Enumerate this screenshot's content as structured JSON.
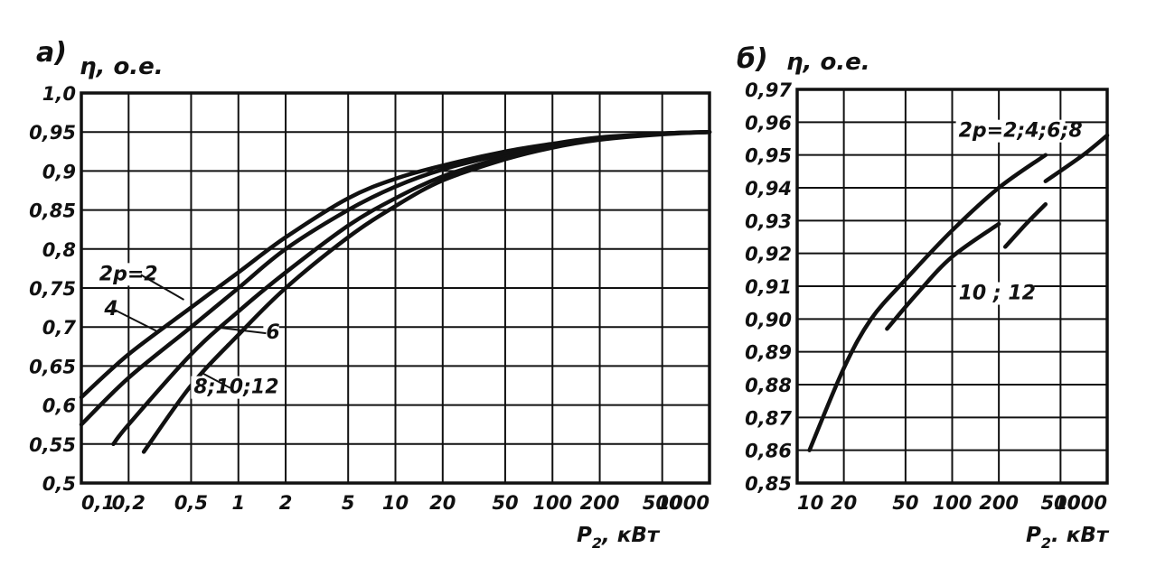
{
  "chart_data": [
    {
      "panel_label": "а)",
      "type": "line",
      "ylabel": "η, о.е.",
      "xlabel_main": "P",
      "xlabel_sub": "2",
      "xlabel_unit": ", кВт",
      "x_scale": "log",
      "xlim": [
        0.1,
        1000
      ],
      "ylim": [
        0.5,
        1.0
      ],
      "grid": true,
      "x_ticks": [
        {
          "v": 0.1,
          "t": "0,1"
        },
        {
          "v": 0.2,
          "t": "0,2"
        },
        {
          "v": 0.5,
          "t": "0,5"
        },
        {
          "v": 1,
          "t": "1"
        },
        {
          "v": 2,
          "t": "2"
        },
        {
          "v": 5,
          "t": "5"
        },
        {
          "v": 10,
          "t": "10"
        },
        {
          "v": 20,
          "t": "20"
        },
        {
          "v": 50,
          "t": "50"
        },
        {
          "v": 100,
          "t": "100"
        },
        {
          "v": 200,
          "t": "200"
        },
        {
          "v": 500,
          "t": "500"
        },
        {
          "v": 1000,
          "t": "1000"
        }
      ],
      "y_ticks": [
        {
          "v": 0.5,
          "t": "0,5"
        },
        {
          "v": 0.55,
          "t": "0,55"
        },
        {
          "v": 0.6,
          "t": "0,6"
        },
        {
          "v": 0.65,
          "t": "0,65"
        },
        {
          "v": 0.7,
          "t": "0,7"
        },
        {
          "v": 0.75,
          "t": "0,75"
        },
        {
          "v": 0.8,
          "t": "0,8"
        },
        {
          "v": 0.85,
          "t": "0,85"
        },
        {
          "v": 0.9,
          "t": "0,9"
        },
        {
          "v": 0.95,
          "t": "0,95"
        },
        {
          "v": 1.0,
          "t": "1,0"
        }
      ],
      "series": [
        {
          "name": "2p=2",
          "x": [
            0.1,
            0.2,
            0.5,
            1,
            2,
            5,
            10,
            20,
            50,
            100,
            200,
            500,
            1000
          ],
          "y": [
            0.61,
            0.665,
            0.725,
            0.77,
            0.815,
            0.865,
            0.89,
            0.907,
            0.925,
            0.935,
            0.943,
            0.948,
            0.95
          ]
        },
        {
          "name": "4",
          "x": [
            0.1,
            0.2,
            0.5,
            1,
            2,
            5,
            10,
            20,
            50,
            100,
            200,
            500,
            1000
          ],
          "y": [
            0.575,
            0.635,
            0.7,
            0.75,
            0.8,
            0.85,
            0.88,
            0.902,
            0.922,
            0.933,
            0.942,
            0.948,
            0.95
          ]
        },
        {
          "name": "6",
          "x": [
            0.16,
            0.2,
            0.5,
            1,
            2,
            5,
            10,
            20,
            50,
            100,
            200,
            500,
            1000
          ],
          "y": [
            0.55,
            0.575,
            0.665,
            0.72,
            0.77,
            0.83,
            0.865,
            0.893,
            0.918,
            0.932,
            0.942,
            0.948,
            0.95
          ]
        },
        {
          "name": "8;10;12",
          "x": [
            0.25,
            0.5,
            1,
            2,
            5,
            10,
            20,
            50,
            100,
            200,
            500,
            1000
          ],
          "y": [
            0.54,
            0.625,
            0.69,
            0.75,
            0.815,
            0.855,
            0.888,
            0.915,
            0.93,
            0.94,
            0.947,
            0.95
          ]
        }
      ],
      "annotations": [
        {
          "text": "2p=2",
          "at": [
            0.13,
            0.76
          ],
          "arrow_to": [
            0.45,
            0.735
          ]
        },
        {
          "text": "4",
          "at": [
            0.14,
            0.715
          ],
          "arrow_to": [
            0.3,
            0.695
          ]
        },
        {
          "text": "6",
          "at": [
            1.5,
            0.685
          ],
          "arrow_to": [
            0.7,
            0.7
          ]
        },
        {
          "text": "8;10;12",
          "at": [
            0.52,
            0.615
          ],
          "arrow_to": [
            0.6,
            0.64
          ]
        }
      ]
    },
    {
      "panel_label": "б)",
      "type": "line",
      "ylabel": "η, о.е.",
      "xlabel_main": "P",
      "xlabel_sub": "2",
      "xlabel_unit": ". кВт",
      "x_scale": "log",
      "xlim": [
        10,
        1000
      ],
      "ylim": [
        0.85,
        0.97
      ],
      "grid": true,
      "x_ticks": [
        {
          "v": 10,
          "t": "10"
        },
        {
          "v": 20,
          "t": "20"
        },
        {
          "v": 50,
          "t": "50"
        },
        {
          "v": 100,
          "t": "100"
        },
        {
          "v": 200,
          "t": "200"
        },
        {
          "v": 500,
          "t": "500"
        },
        {
          "v": 1000,
          "t": "1000"
        }
      ],
      "y_ticks": [
        {
          "v": 0.85,
          "t": "0,85"
        },
        {
          "v": 0.86,
          "t": "0,86"
        },
        {
          "v": 0.87,
          "t": "0,87"
        },
        {
          "v": 0.88,
          "t": "0,88"
        },
        {
          "v": 0.89,
          "t": "0,89"
        },
        {
          "v": 0.9,
          "t": "0,90"
        },
        {
          "v": 0.91,
          "t": "0,91"
        },
        {
          "v": 0.92,
          "t": "0,92"
        },
        {
          "v": 0.93,
          "t": "0,93"
        },
        {
          "v": 0.94,
          "t": "0,94"
        },
        {
          "v": 0.95,
          "t": "0,95"
        },
        {
          "v": 0.96,
          "t": "0,96"
        },
        {
          "v": 0.97,
          "t": "0,97"
        }
      ],
      "series": [
        {
          "name": "2p=2;4;6;8",
          "x": [
            12,
            20,
            30,
            50,
            100,
            200,
            400
          ],
          "y": [
            0.86,
            0.885,
            0.9,
            0.912,
            0.927,
            0.94,
            0.95
          ]
        },
        {
          "name": "2p=2;4;6;8",
          "x": [
            400,
            700,
            1000
          ],
          "y": [
            0.942,
            0.95,
            0.956
          ]
        },
        {
          "name": "10;12",
          "x": [
            38,
            60,
            100,
            200
          ],
          "y": [
            0.897,
            0.908,
            0.919,
            0.929
          ]
        },
        {
          "name": "10;12",
          "x": [
            220,
            300,
            400
          ],
          "y": [
            0.922,
            0.929,
            0.935
          ]
        }
      ],
      "annotations": [
        {
          "text": "2p=2;4;6;8",
          "at": [
            110,
            0.9555
          ]
        },
        {
          "text": "10 ; 12",
          "at": [
            110,
            0.906
          ]
        }
      ]
    }
  ]
}
